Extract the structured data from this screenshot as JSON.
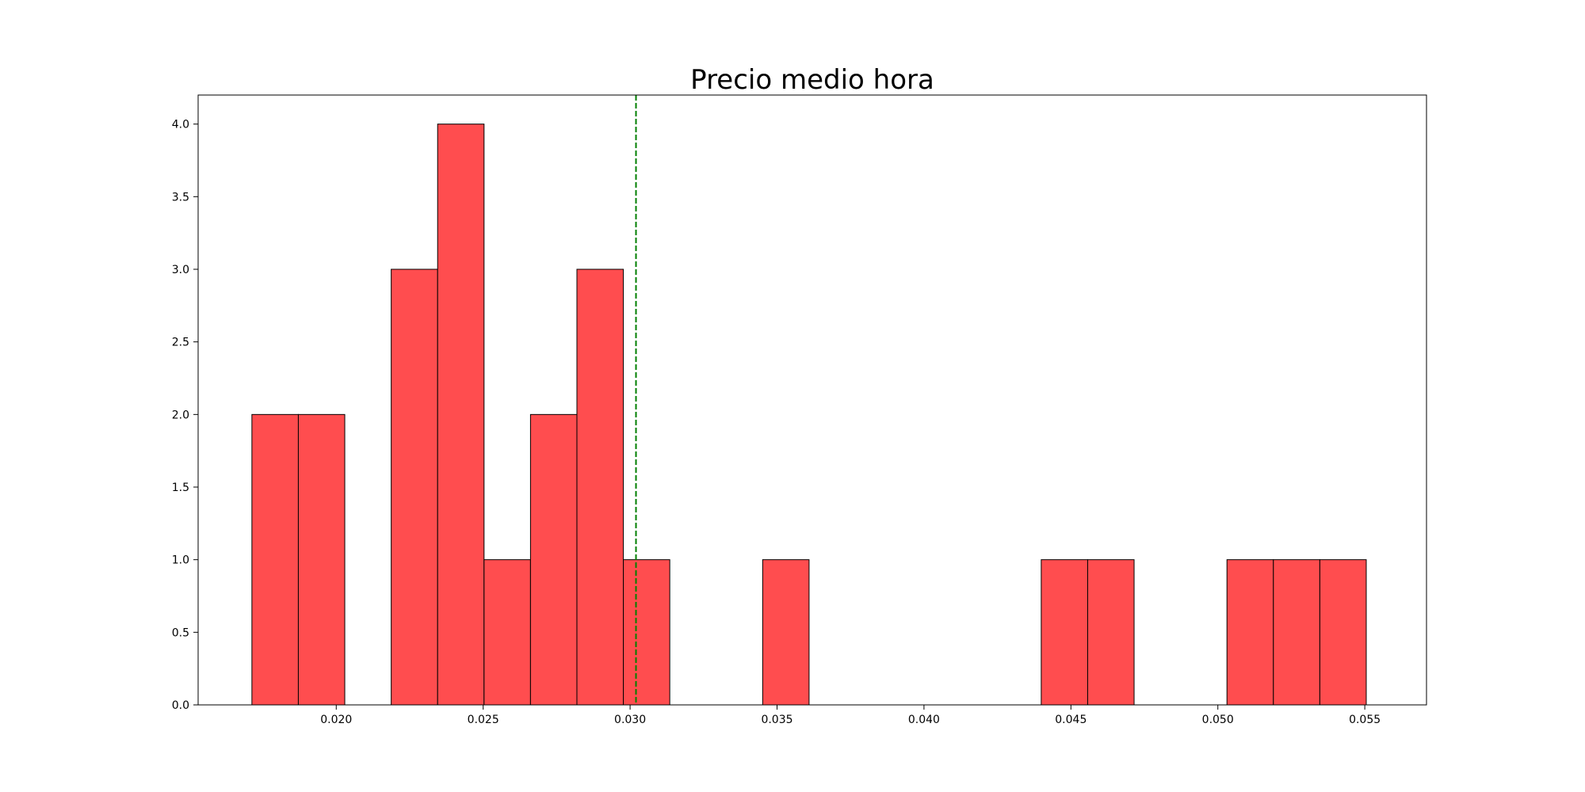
{
  "chart_data": {
    "type": "bar",
    "title": "Precio medio hora",
    "xlabel": "",
    "ylabel": "",
    "bins": [
      {
        "x0": 0.01713,
        "x1": 0.01871,
        "count": 2
      },
      {
        "x0": 0.01871,
        "x1": 0.02029,
        "count": 2
      },
      {
        "x0": 0.02029,
        "x1": 0.02187,
        "count": 0
      },
      {
        "x0": 0.02187,
        "x1": 0.02345,
        "count": 3
      },
      {
        "x0": 0.02345,
        "x1": 0.02503,
        "count": 4
      },
      {
        "x0": 0.02503,
        "x1": 0.02661,
        "count": 1
      },
      {
        "x0": 0.02661,
        "x1": 0.02819,
        "count": 2
      },
      {
        "x0": 0.02819,
        "x1": 0.02977,
        "count": 3
      },
      {
        "x0": 0.02977,
        "x1": 0.03135,
        "count": 1
      },
      {
        "x0": 0.03135,
        "x1": 0.03293,
        "count": 0
      },
      {
        "x0": 0.03293,
        "x1": 0.03451,
        "count": 0
      },
      {
        "x0": 0.03451,
        "x1": 0.03609,
        "count": 1
      },
      {
        "x0": 0.03609,
        "x1": 0.03767,
        "count": 0
      },
      {
        "x0": 0.03767,
        "x1": 0.03925,
        "count": 0
      },
      {
        "x0": 0.03925,
        "x1": 0.04083,
        "count": 0
      },
      {
        "x0": 0.04083,
        "x1": 0.04241,
        "count": 0
      },
      {
        "x0": 0.04241,
        "x1": 0.04399,
        "count": 0
      },
      {
        "x0": 0.04399,
        "x1": 0.04557,
        "count": 1
      },
      {
        "x0": 0.04557,
        "x1": 0.04715,
        "count": 1
      },
      {
        "x0": 0.04715,
        "x1": 0.04873,
        "count": 0
      },
      {
        "x0": 0.04873,
        "x1": 0.05031,
        "count": 0
      },
      {
        "x0": 0.05031,
        "x1": 0.05189,
        "count": 1
      },
      {
        "x0": 0.05189,
        "x1": 0.05347,
        "count": 1
      },
      {
        "x0": 0.05347,
        "x1": 0.05505,
        "count": 1
      }
    ],
    "mean_line": {
      "x": 0.0302,
      "color": "#008000",
      "style": "dashed"
    },
    "xlim": [
      0.0153,
      0.0571
    ],
    "ylim": [
      0,
      4.2
    ],
    "xticks": [
      {
        "value": 0.02,
        "label": "0.020"
      },
      {
        "value": 0.025,
        "label": "0.025"
      },
      {
        "value": 0.03,
        "label": "0.030"
      },
      {
        "value": 0.035,
        "label": "0.035"
      },
      {
        "value": 0.04,
        "label": "0.040"
      },
      {
        "value": 0.045,
        "label": "0.045"
      },
      {
        "value": 0.05,
        "label": "0.050"
      },
      {
        "value": 0.055,
        "label": "0.055"
      }
    ],
    "yticks": [
      {
        "value": 0.0,
        "label": "0.0"
      },
      {
        "value": 0.5,
        "label": "0.5"
      },
      {
        "value": 1.0,
        "label": "1.0"
      },
      {
        "value": 1.5,
        "label": "1.5"
      },
      {
        "value": 2.0,
        "label": "2.0"
      },
      {
        "value": 2.5,
        "label": "2.5"
      },
      {
        "value": 3.0,
        "label": "3.0"
      },
      {
        "value": 3.5,
        "label": "3.5"
      },
      {
        "value": 4.0,
        "label": "4.0"
      }
    ],
    "bar_color": "#ff4d4f",
    "edge_color": "#000000",
    "grid": false,
    "legend": "none"
  }
}
